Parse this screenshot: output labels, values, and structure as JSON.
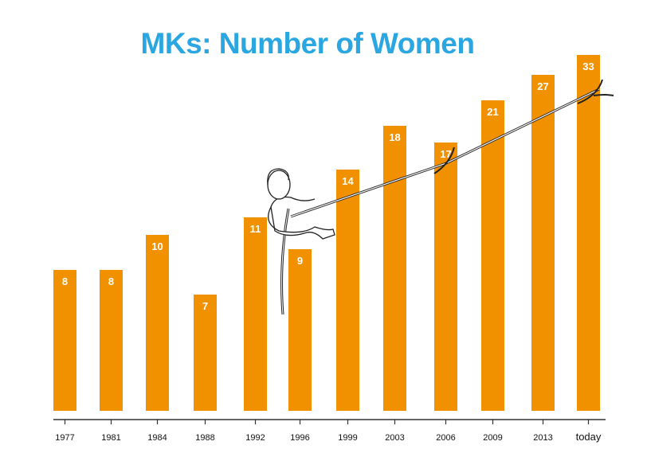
{
  "chart_data": {
    "type": "bar",
    "title": "MKs: Number of Women",
    "categories": [
      "1977",
      "1981",
      "1984",
      "1988",
      "1992",
      "1996",
      "1999",
      "2003",
      "2006",
      "2009",
      "2013",
      "today"
    ],
    "values": [
      8,
      8,
      10,
      7,
      11,
      9,
      14,
      18,
      17,
      21,
      27,
      33
    ],
    "xlabel": "",
    "ylabel": "",
    "grid": false,
    "legend": "none",
    "data_labels": "inside-top",
    "colors": {
      "bar": "#f29100",
      "title": "#2aa6e0",
      "label": "#ffffff",
      "axis": "#333333"
    },
    "illustration": "woman-pole-vaulting-with-rope-to-last-bar"
  }
}
